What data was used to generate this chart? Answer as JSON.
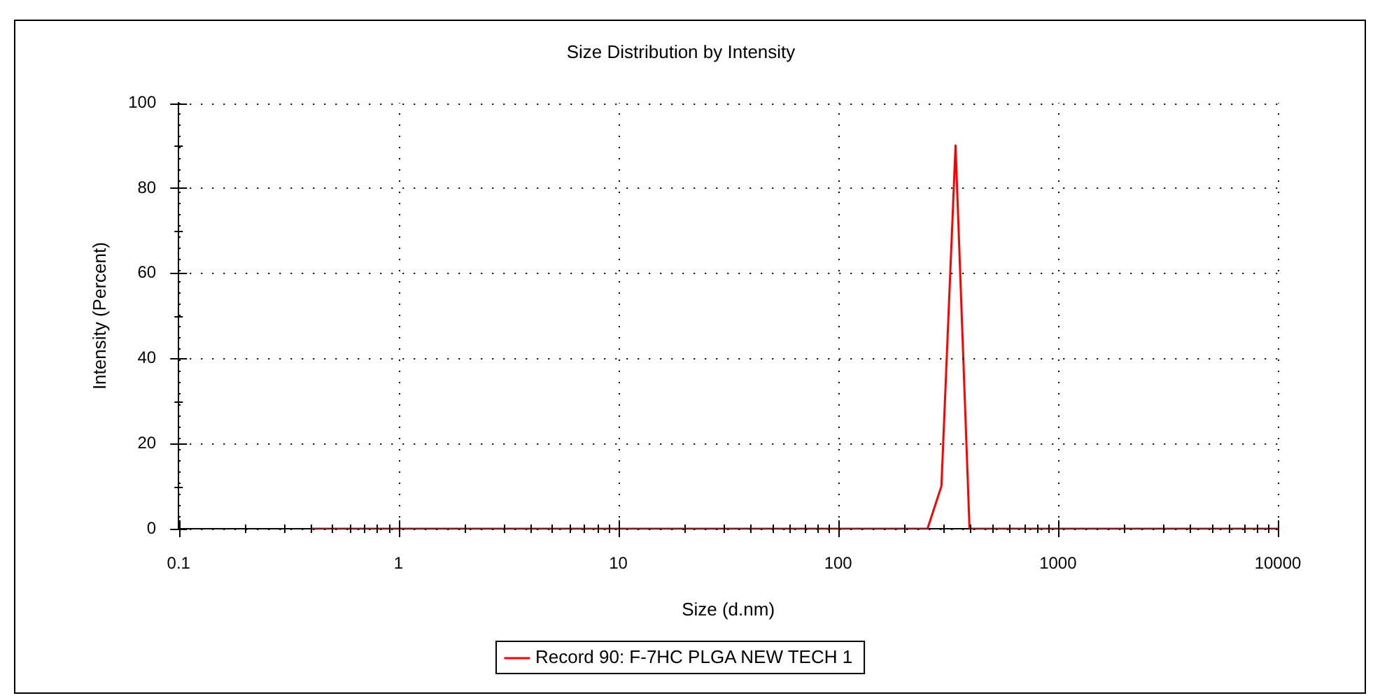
{
  "chart_data": {
    "type": "line",
    "title": "Size Distribution by Intensity",
    "xlabel": "Size (d.nm)",
    "ylabel": "Intensity (Percent)",
    "log": "x",
    "grid": true,
    "line_style": "solid",
    "marker": "none",
    "legend": "bottom",
    "xlim": [
      0.1,
      10000
    ],
    "ylim": [
      0,
      100
    ],
    "xticks": [
      {
        "value": 0.1,
        "label": "0.1"
      },
      {
        "value": 0.2,
        "label": null
      },
      {
        "value": 0.3,
        "label": null
      },
      {
        "value": 0.4,
        "label": null
      },
      {
        "value": 0.5,
        "label": null
      },
      {
        "value": 0.6,
        "label": null
      },
      {
        "value": 0.7,
        "label": null
      },
      {
        "value": 0.8,
        "label": null
      },
      {
        "value": 0.9,
        "label": null
      },
      1,
      {
        "value": 2,
        "label": null
      },
      {
        "value": 3,
        "label": null
      },
      {
        "value": 4,
        "label": null
      },
      {
        "value": 5,
        "label": null
      },
      {
        "value": 6,
        "label": null
      },
      {
        "value": 7,
        "label": null
      },
      {
        "value": 8,
        "label": null
      },
      {
        "value": 9,
        "label": null
      },
      10,
      {
        "value": 20,
        "label": null
      },
      {
        "value": 30,
        "label": null
      },
      {
        "value": 40,
        "label": null
      },
      {
        "value": 50,
        "label": null
      },
      {
        "value": 60,
        "label": null
      },
      {
        "value": 70,
        "label": null
      },
      {
        "value": 80,
        "label": null
      },
      {
        "value": 90,
        "label": null
      },
      100,
      {
        "value": 200,
        "label": null
      },
      {
        "value": 300,
        "label": null
      },
      {
        "value": 400,
        "label": null
      },
      {
        "value": 500,
        "label": null
      },
      {
        "value": 600,
        "label": null
      },
      {
        "value": 700,
        "label": null
      },
      {
        "value": 800,
        "label": null
      },
      {
        "value": 900,
        "label": null
      },
      1000,
      {
        "value": 2000,
        "label": null
      },
      {
        "value": 3000,
        "label": null
      },
      {
        "value": 4000,
        "label": null
      },
      {
        "value": 5000,
        "label": null
      },
      {
        "value": 6000,
        "label": null
      },
      {
        "value": 7000,
        "label": null
      },
      {
        "value": 8000,
        "label": null
      },
      {
        "value": 9000,
        "label": null
      },
      10000
    ],
    "yticks": [
      0,
      {
        "value": 10,
        "label": null
      },
      20,
      {
        "value": 30,
        "label": null
      },
      40,
      {
        "value": 50,
        "label": null
      },
      60,
      {
        "value": 70,
        "label": null
      },
      80,
      {
        "value": 90,
        "label": null
      },
      100
    ],
    "series": [
      {
        "name": "Record 90: F-7HC PLGA NEW TECH 1",
        "color": "#ff0000",
        "x": [
          0.4,
          255,
          295,
          342,
          396,
          10000
        ],
        "values": [
          0,
          0,
          10,
          90,
          0,
          0
        ]
      }
    ]
  }
}
